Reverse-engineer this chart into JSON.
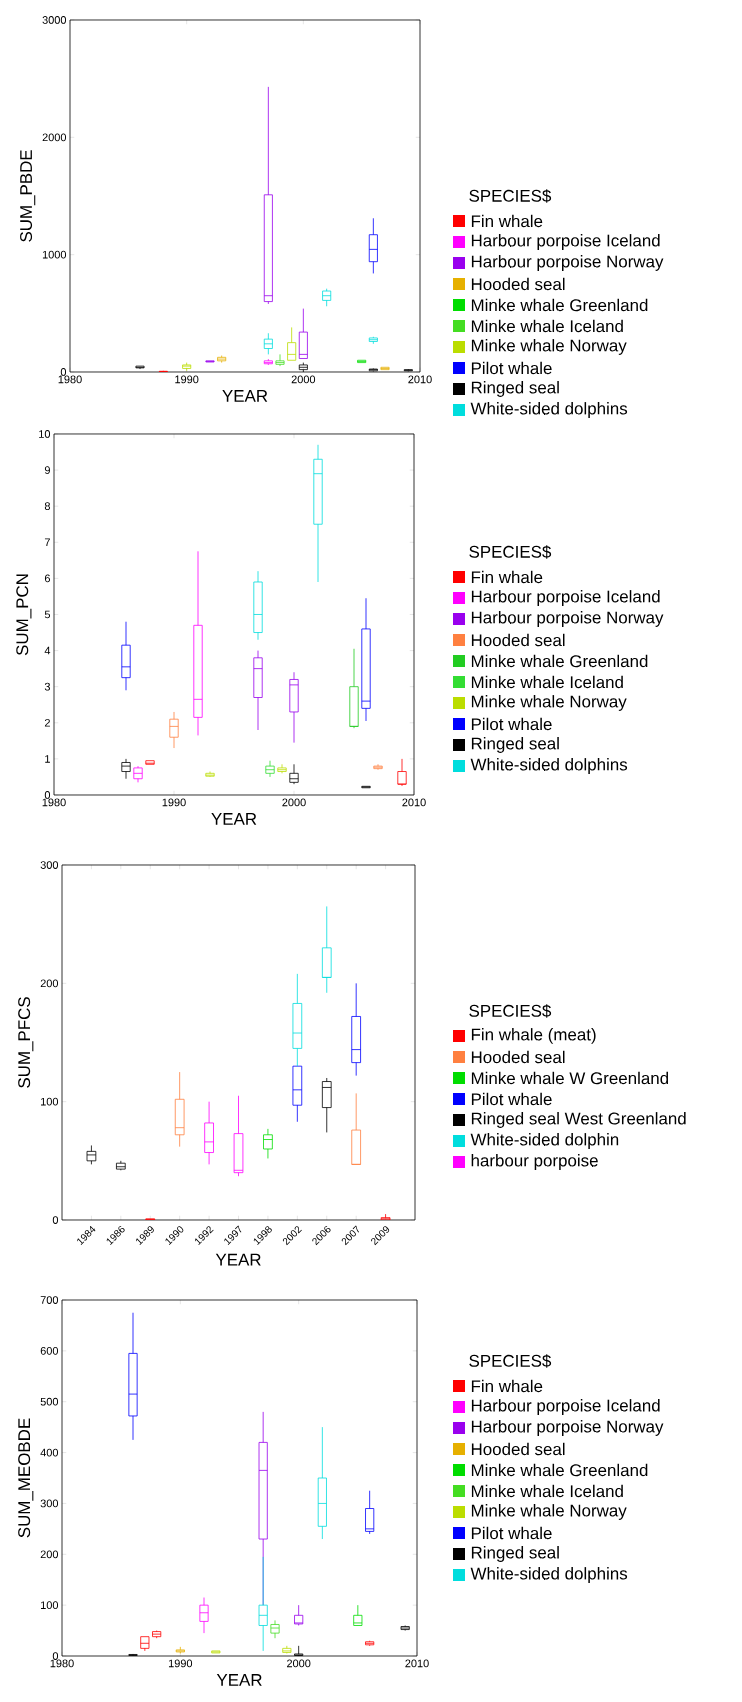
{
  "chart_data": [
    {
      "type": "box",
      "xlabel": "YEAR",
      "ylabel": "SUM_PBDE",
      "legend_title": "SPECIES$",
      "legend": "right",
      "xlim": [
        1980,
        2010
      ],
      "xticks": [
        1980,
        1990,
        2000,
        2010
      ],
      "ylim": [
        0,
        3000
      ],
      "yticks": [
        0,
        1000,
        2000,
        3000
      ],
      "series": [
        {
          "name": "Fin whale",
          "color": "#ff0000",
          "x": [
            1988
          ],
          "boxes": [
            {
              "low": 0,
              "q1": 2,
              "median": 4,
              "q3": 6,
              "high": 10
            }
          ]
        },
        {
          "name": "Harbour porpoise Iceland",
          "color": "#ff00ff",
          "x": [
            1997
          ],
          "boxes": [
            {
              "low": 60,
              "q1": 70,
              "median": 80,
              "q3": 95,
              "high": 110
            }
          ]
        },
        {
          "name": "Harbour porpoise Norway",
          "color": "#9900ee",
          "x": [
            1992,
            1997,
            2000
          ],
          "boxes": [
            {
              "low": 85,
              "q1": 85,
              "median": 90,
              "q3": 95,
              "high": 95
            },
            {
              "low": 580,
              "q1": 600,
              "median": 650,
              "q3": 1510,
              "high": 2430
            },
            {
              "low": 115,
              "q1": 115,
              "median": 150,
              "q3": 340,
              "high": 540
            }
          ]
        },
        {
          "name": "Hooded seal",
          "color": "#e6b000",
          "x": [
            1993,
            2007
          ],
          "boxes": [
            {
              "low": 80,
              "q1": 95,
              "median": 110,
              "q3": 125,
              "high": 140
            },
            {
              "low": 20,
              "q1": 20,
              "median": 30,
              "q3": 40,
              "high": 40
            }
          ]
        },
        {
          "name": "Minke whale Greenland",
          "color": "#00dd00",
          "x": [
            2005
          ],
          "boxes": [
            {
              "low": 80,
              "q1": 80,
              "median": 90,
              "q3": 100,
              "high": 100
            }
          ]
        },
        {
          "name": "Minke whale Iceland",
          "color": "#44dd22",
          "x": [
            1998
          ],
          "boxes": [
            {
              "low": 50,
              "q1": 65,
              "median": 80,
              "q3": 95,
              "high": 150
            }
          ]
        },
        {
          "name": "Minke whale Norway",
          "color": "#bbdd00",
          "x": [
            1990,
            1999
          ],
          "boxes": [
            {
              "low": 10,
              "q1": 30,
              "median": 50,
              "q3": 60,
              "high": 80
            },
            {
              "low": 100,
              "q1": 100,
              "median": 150,
              "q3": 250,
              "high": 380
            }
          ]
        },
        {
          "name": "Pilot whale",
          "color": "#0000ff",
          "x": [
            2006
          ],
          "boxes": [
            {
              "low": 840,
              "q1": 940,
              "median": 1045,
              "q3": 1170,
              "high": 1310
            }
          ]
        },
        {
          "name": "Ringed seal",
          "color": "#000000",
          "x": [
            1986,
            2000,
            2006,
            2009
          ],
          "boxes": [
            {
              "low": 25,
              "q1": 35,
              "median": 40,
              "q3": 50,
              "high": 50
            },
            {
              "low": 0,
              "q1": 20,
              "median": 40,
              "q3": 60,
              "high": 80
            },
            {
              "low": 5,
              "q1": 10,
              "median": 20,
              "q3": 25,
              "high": 30
            },
            {
              "low": 5,
              "q1": 10,
              "median": 15,
              "q3": 20,
              "high": 25
            }
          ]
        },
        {
          "name": "White-sided  dolphins",
          "color": "#00dddd",
          "x": [
            1997,
            2002,
            2006
          ],
          "boxes": [
            {
              "low": 150,
              "q1": 200,
              "median": 240,
              "q3": 280,
              "high": 330
            },
            {
              "low": 560,
              "q1": 610,
              "median": 650,
              "q3": 690,
              "high": 710
            },
            {
              "low": 240,
              "q1": 260,
              "median": 275,
              "q3": 290,
              "high": 300
            }
          ]
        }
      ]
    },
    {
      "type": "box",
      "xlabel": "YEAR",
      "ylabel": "SUM_PCN",
      "legend_title": "SPECIES$",
      "legend": "right",
      "xlim": [
        1980,
        2010
      ],
      "xticks": [
        1980,
        1990,
        2000,
        2010
      ],
      "ylim": [
        0,
        10
      ],
      "yticks": [
        0,
        1,
        2,
        3,
        4,
        5,
        6,
        7,
        8,
        9,
        10
      ],
      "series": [
        {
          "name": "Fin whale",
          "color": "#ff0000",
          "x": [
            1988,
            2009
          ],
          "boxes": [
            {
              "low": 0.85,
              "q1": 0.85,
              "median": 0.88,
              "q3": 0.95,
              "high": 0.95
            },
            {
              "low": 0.25,
              "q1": 0.3,
              "median": 0.3,
              "q3": 0.65,
              "high": 1.0
            }
          ]
        },
        {
          "name": "Harbour porpoise Iceland",
          "color": "#ff00ff",
          "x": [
            1987,
            1992
          ],
          "boxes": [
            {
              "low": 0.35,
              "q1": 0.45,
              "median": 0.6,
              "q3": 0.75,
              "high": 0.8
            },
            {
              "low": 1.65,
              "q1": 2.15,
              "median": 2.65,
              "q3": 4.7,
              "high": 6.75
            }
          ]
        },
        {
          "name": "Harbour porpoise Norway",
          "color": "#9900ee",
          "x": [
            1997,
            2000
          ],
          "boxes": [
            {
              "low": 1.8,
              "q1": 2.7,
              "median": 3.5,
              "q3": 3.8,
              "high": 4.0
            },
            {
              "low": 1.45,
              "q1": 2.3,
              "median": 3.05,
              "q3": 3.2,
              "high": 3.4
            }
          ]
        },
        {
          "name": "Hooded seal",
          "color": "#ff8040",
          "x": [
            1990,
            2007
          ],
          "boxes": [
            {
              "low": 1.3,
              "q1": 1.6,
              "median": 1.9,
              "q3": 2.1,
              "high": 2.3
            },
            {
              "low": 0.7,
              "q1": 0.73,
              "median": 0.77,
              "q3": 0.8,
              "high": 0.85
            }
          ]
        },
        {
          "name": "Minke whale Greenland",
          "color": "#22cc22",
          "x": [
            2005
          ],
          "boxes": [
            {
              "low": 1.85,
              "q1": 1.9,
              "median": 1.9,
              "q3": 3.0,
              "high": 4.05
            }
          ]
        },
        {
          "name": "Minke whale Iceland",
          "color": "#33dd33",
          "x": [
            1998
          ],
          "boxes": [
            {
              "low": 0.5,
              "q1": 0.6,
              "median": 0.7,
              "q3": 0.8,
              "high": 0.95
            }
          ]
        },
        {
          "name": "Minke whale Norway",
          "color": "#bbdd00",
          "x": [
            1993,
            1999
          ],
          "boxes": [
            {
              "low": 0.5,
              "q1": 0.52,
              "median": 0.55,
              "q3": 0.6,
              "high": 0.65
            },
            {
              "low": 0.6,
              "q1": 0.65,
              "median": 0.7,
              "q3": 0.75,
              "high": 0.85
            }
          ]
        },
        {
          "name": "Pilot whale",
          "color": "#0000ff",
          "x": [
            1986,
            2006
          ],
          "boxes": [
            {
              "low": 2.9,
              "q1": 3.25,
              "median": 3.55,
              "q3": 4.15,
              "high": 4.8
            },
            {
              "low": 2.05,
              "q1": 2.4,
              "median": 2.6,
              "q3": 4.6,
              "high": 5.45
            }
          ]
        },
        {
          "name": "Ringed seal",
          "color": "#000000",
          "x": [
            1986,
            2000,
            2006
          ],
          "boxes": [
            {
              "low": 0.45,
              "q1": 0.65,
              "median": 0.8,
              "q3": 0.9,
              "high": 1.0
            },
            {
              "low": 0.3,
              "q1": 0.35,
              "median": 0.45,
              "q3": 0.6,
              "high": 0.85
            },
            {
              "low": 0.2,
              "q1": 0.2,
              "median": 0.22,
              "q3": 0.24,
              "high": 0.24
            }
          ]
        },
        {
          "name": "White-sided  dolphins",
          "color": "#00dddd",
          "x": [
            1997,
            2002
          ],
          "boxes": [
            {
              "low": 4.3,
              "q1": 4.5,
              "median": 5.0,
              "q3": 5.9,
              "high": 6.2
            },
            {
              "low": 5.9,
              "q1": 7.5,
              "median": 8.9,
              "q3": 9.3,
              "high": 9.7
            }
          ]
        }
      ]
    },
    {
      "type": "box",
      "xlabel": "YEAR",
      "ylabel": "SUM_PFCS",
      "legend_title": "SPECIES$",
      "legend": "right",
      "categories": [
        "1984",
        "1986",
        "1989",
        "1990",
        "1992",
        "1997",
        "1998",
        "2002",
        "2006",
        "2007",
        "2009"
      ],
      "ylim": [
        0,
        300
      ],
      "yticks": [
        0,
        100,
        200,
        300
      ],
      "series": [
        {
          "name": "Fin whale (meat)",
          "color": "#ff0000",
          "boxes": [
            null,
            null,
            {
              "low": 0,
              "q1": 0,
              "median": 0.5,
              "q3": 1,
              "high": 1
            },
            null,
            null,
            null,
            null,
            null,
            null,
            null,
            {
              "low": 0,
              "q1": 0,
              "median": 1,
              "q3": 2,
              "high": 5
            }
          ]
        },
        {
          "name": "Hooded seal",
          "color": "#ff8040",
          "boxes": [
            null,
            null,
            null,
            {
              "low": 62,
              "q1": 72,
              "median": 78,
              "q3": 102,
              "high": 125
            },
            null,
            null,
            null,
            null,
            null,
            {
              "low": 47,
              "q1": 47,
              "median": 47,
              "q3": 76,
              "high": 107
            },
            null
          ]
        },
        {
          "name": "Minke whale W Greenland",
          "color": "#00dd00",
          "boxes": [
            null,
            null,
            null,
            null,
            null,
            null,
            {
              "low": 52,
              "q1": 60,
              "median": 68,
              "q3": 72,
              "high": 77
            },
            null,
            null,
            null,
            null
          ]
        },
        {
          "name": "Pilot whale",
          "color": "#0000ff",
          "boxes": [
            null,
            null,
            null,
            null,
            null,
            null,
            null,
            {
              "low": 83,
              "q1": 97,
              "median": 110,
              "q3": 130,
              "high": 130
            },
            null,
            {
              "low": 122,
              "q1": 133,
              "median": 144,
              "q3": 172,
              "high": 200
            },
            null
          ]
        },
        {
          "name": "Ringed seal West Greenland",
          "color": "#000000",
          "boxes": [
            {
              "low": 47,
              "q1": 50,
              "median": 55,
              "q3": 58,
              "high": 63
            },
            {
              "low": 42,
              "q1": 43,
              "median": 45,
              "q3": 48,
              "high": 50
            },
            null,
            null,
            null,
            null,
            null,
            null,
            {
              "low": 74,
              "q1": 95,
              "median": 112,
              "q3": 117,
              "high": 120
            },
            null,
            null
          ]
        },
        {
          "name": "White-sided dolphin",
          "color": "#00dddd",
          "boxes": [
            null,
            null,
            null,
            null,
            null,
            null,
            null,
            {
              "low": 130,
              "q1": 145,
              "median": 158,
              "q3": 183,
              "high": 208
            },
            {
              "low": 192,
              "q1": 205,
              "median": 205,
              "q3": 230,
              "high": 265
            },
            null,
            null
          ]
        },
        {
          "name": "harbour porpoise",
          "color": "#ff00ff",
          "boxes": [
            null,
            null,
            null,
            null,
            {
              "low": 47,
              "q1": 57,
              "median": 66,
              "q3": 82,
              "high": 100
            },
            {
              "low": 37,
              "q1": 40,
              "median": 42,
              "q3": 73,
              "high": 105
            },
            null,
            null,
            null,
            null,
            null
          ]
        }
      ]
    },
    {
      "type": "box",
      "xlabel": "YEAR",
      "ylabel": "SUM_MEOBDE",
      "legend_title": "SPECIES$",
      "legend": "right",
      "xlim": [
        1980,
        2010
      ],
      "xticks": [
        1980,
        1990,
        2000,
        2010
      ],
      "ylim": [
        0,
        700
      ],
      "yticks": [
        0,
        100,
        200,
        300,
        400,
        500,
        600,
        700
      ],
      "series": [
        {
          "name": "Fin whale",
          "color": "#ff0000",
          "x": [
            1987,
            1988,
            2006
          ],
          "boxes": [
            {
              "low": 10,
              "q1": 15,
              "median": 25,
              "q3": 38,
              "high": 38
            },
            {
              "low": 35,
              "q1": 38,
              "median": 43,
              "q3": 48,
              "high": 50
            },
            {
              "low": 20,
              "q1": 22,
              "median": 25,
              "q3": 28,
              "high": 30
            }
          ]
        },
        {
          "name": "Harbour porpoise Iceland",
          "color": "#ff00ff",
          "x": [
            1992
          ],
          "boxes": [
            {
              "low": 45,
              "q1": 68,
              "median": 85,
              "q3": 100,
              "high": 115
            }
          ]
        },
        {
          "name": "Harbour porpoise Norway",
          "color": "#9900ee",
          "x": [
            1997,
            2000
          ],
          "boxes": [
            {
              "low": 100,
              "q1": 230,
              "median": 365,
              "q3": 420,
              "high": 480
            },
            {
              "low": 60,
              "q1": 63,
              "median": 65,
              "q3": 80,
              "high": 100
            }
          ]
        },
        {
          "name": "Hooded seal",
          "color": "#e6b000",
          "x": [
            1990
          ],
          "boxes": [
            {
              "low": 5,
              "q1": 8,
              "median": 10,
              "q3": 12,
              "high": 18
            }
          ]
        },
        {
          "name": "Minke whale Greenland",
          "color": "#00dd00",
          "x": [
            2005
          ],
          "boxes": [
            {
              "low": 60,
              "q1": 60,
              "median": 65,
              "q3": 80,
              "high": 100
            }
          ]
        },
        {
          "name": "Minke whale Iceland",
          "color": "#44dd22",
          "x": [
            1998
          ],
          "boxes": [
            {
              "low": 35,
              "q1": 45,
              "median": 55,
              "q3": 62,
              "high": 70
            }
          ]
        },
        {
          "name": "Minke whale Norway",
          "color": "#bbdd00",
          "x": [
            1993,
            1999
          ],
          "boxes": [
            {
              "low": 6,
              "q1": 6,
              "median": 8,
              "q3": 10,
              "high": 10
            },
            {
              "low": 5,
              "q1": 7,
              "median": 10,
              "q3": 15,
              "high": 20
            }
          ]
        },
        {
          "name": "Pilot whale",
          "color": "#0000ff",
          "x": [
            1986,
            2006
          ],
          "boxes": [
            {
              "low": 425,
              "q1": 472,
              "median": 515,
              "q3": 595,
              "high": 675
            },
            {
              "low": 240,
              "q1": 245,
              "median": 250,
              "q3": 290,
              "high": 325
            }
          ]
        },
        {
          "name": "Ringed seal",
          "color": "#000000",
          "x": [
            1986,
            2000,
            2009
          ],
          "boxes": [
            {
              "low": 0,
              "q1": 1,
              "median": 2,
              "q3": 3,
              "high": 4
            },
            {
              "low": 0,
              "q1": 1,
              "median": 2,
              "q3": 4,
              "high": 20
            },
            {
              "low": 50,
              "q1": 52,
              "median": 55,
              "q3": 58,
              "high": 60
            }
          ]
        },
        {
          "name": "White-sided  dolphins",
          "color": "#00dddd",
          "x": [
            1997,
            2002
          ],
          "boxes": [
            {
              "low": 10,
              "q1": 60,
              "median": 80,
              "q3": 100,
              "high": 195
            },
            {
              "low": 230,
              "q1": 255,
              "median": 300,
              "q3": 350,
              "high": 450
            }
          ]
        }
      ]
    }
  ]
}
